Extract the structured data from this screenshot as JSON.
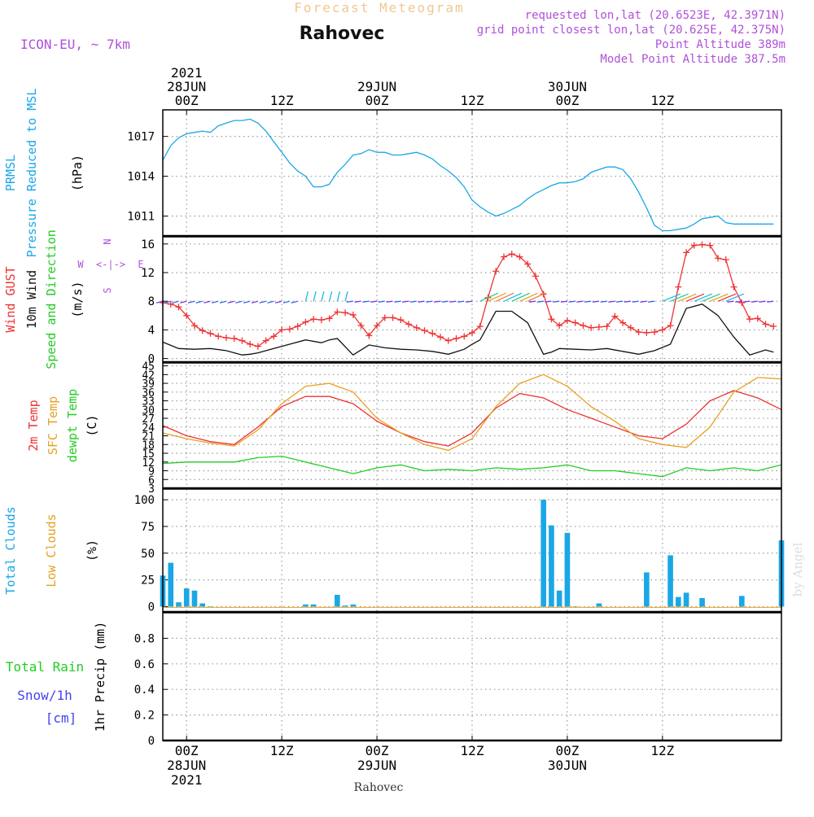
{
  "header": {
    "title": "Rahovec",
    "subtitle": "Forecast Meteogram",
    "model": "ICON-EU, ~ 7km",
    "requested": "requested lon,lat (20.6523E, 42.3971N)",
    "grid_point": "grid point closest lon,lat (20.625E, 42.375N)",
    "point_altitude": "Point Altitude 389m",
    "model_altitude": "Model Point Altitude 387.5m",
    "credit": "by Angel",
    "bottom_label": "Rahovec"
  },
  "colors": {
    "pressure": "#1aa7e6",
    "gust": "#ee3333",
    "wind": "#111111",
    "temp": "#ee3333",
    "sfc_temp": "#e8a020",
    "dewpt": "#22cc22",
    "clouds": "#1aa7e6",
    "low_clouds": "#e8a020",
    "rain": "#22cc22",
    "snow": "#4444ee",
    "purple": "#b050d8",
    "title_orange": "#f0c890"
  },
  "time_axis": {
    "hours_total": 78,
    "top_ticks": [
      {
        "hour": 3,
        "lines": [
          "2021",
          "28JUN",
          "00Z"
        ]
      },
      {
        "hour": 15,
        "lines": [
          "12Z"
        ]
      },
      {
        "hour": 27,
        "lines": [
          "29JUN",
          "00Z"
        ]
      },
      {
        "hour": 39,
        "lines": [
          "12Z"
        ]
      },
      {
        "hour": 51,
        "lines": [
          "30JUN",
          "00Z"
        ]
      },
      {
        "hour": 63,
        "lines": [
          "12Z"
        ]
      }
    ],
    "bottom_ticks": [
      {
        "hour": 3,
        "lines": [
          "00Z",
          "28JUN",
          "2021"
        ]
      },
      {
        "hour": 15,
        "lines": [
          "12Z"
        ]
      },
      {
        "hour": 27,
        "lines": [
          "00Z",
          "29JUN"
        ]
      },
      {
        "hour": 39,
        "lines": [
          "12Z"
        ]
      },
      {
        "hour": 51,
        "lines": [
          "00Z",
          "30JUN"
        ]
      },
      {
        "hour": 63,
        "lines": [
          "12Z"
        ]
      }
    ]
  },
  "chart_data": [
    {
      "type": "line",
      "title": "PRMSL Pressure Reduced to MSL",
      "label_lines": [
        "PRMSL",
        "Pressure Reduced to MSL"
      ],
      "ylabel": "(hPa)",
      "ylim": [
        1009.5,
        1019
      ],
      "yticks": [
        1011,
        1014,
        1017
      ],
      "series": [
        {
          "name": "PRMSL",
          "hours": [
            0,
            1,
            2,
            3,
            4,
            5,
            6,
            7,
            8,
            9,
            10,
            11,
            12,
            13,
            14,
            15,
            16,
            17,
            18,
            19,
            20,
            21,
            22,
            23,
            24,
            25,
            26,
            27,
            28,
            29,
            30,
            31,
            32,
            33,
            34,
            35,
            36,
            37,
            38,
            39,
            40,
            41,
            42,
            43,
            44,
            45,
            46,
            47,
            48,
            49,
            50,
            51,
            52,
            53,
            54,
            55,
            56,
            57,
            58,
            59,
            60,
            61,
            62,
            63,
            64,
            65,
            66,
            67,
            68,
            69,
            70,
            71,
            72,
            73,
            74,
            75,
            76,
            77
          ],
          "values": [
            1015.2,
            1016.3,
            1016.9,
            1017.2,
            1017.3,
            1017.4,
            1017.3,
            1017.8,
            1018.0,
            1018.2,
            1018.2,
            1018.3,
            1018.0,
            1017.4,
            1016.6,
            1015.8,
            1015.0,
            1014.4,
            1014.0,
            1013.2,
            1013.2,
            1013.4,
            1014.3,
            1014.9,
            1015.6,
            1015.7,
            1016.0,
            1015.8,
            1015.8,
            1015.6,
            1015.6,
            1015.7,
            1015.8,
            1015.6,
            1015.3,
            1014.8,
            1014.4,
            1013.9,
            1013.2,
            1012.2,
            1011.7,
            1011.3,
            1011.0,
            1011.2,
            1011.5,
            1011.8,
            1012.3,
            1012.7,
            1013.0,
            1013.3,
            1013.5,
            1013.5,
            1013.6,
            1013.8,
            1014.3,
            1014.5,
            1014.7,
            1014.7,
            1014.5,
            1013.8,
            1012.8,
            1011.6,
            1010.3,
            1009.9,
            1009.9,
            1010.0,
            1010.1,
            1010.4,
            1010.8,
            1010.9,
            1011.0,
            1010.5,
            1010.4,
            1010.4,
            1010.4,
            1010.4,
            1010.4,
            1010.4
          ]
        }
      ]
    },
    {
      "type": "line",
      "title": "Wind GUST / 10m Wind Speed and Direction",
      "label_lines": [
        "Wind GUST",
        "10m Wind",
        "Speed and Direction"
      ],
      "ylabel": "(m/s)",
      "ylim": [
        -0.5,
        17
      ],
      "yticks": [
        0,
        4,
        8,
        12,
        16
      ],
      "compass": {
        "n": "N",
        "s": "S",
        "e": "E",
        "w": "W",
        "mid": "<-|->"
      },
      "series": [
        {
          "name": "Wind GUST",
          "hours": [
            0,
            1,
            2,
            3,
            4,
            5,
            6,
            7,
            8,
            9,
            10,
            11,
            12,
            13,
            14,
            15,
            16,
            17,
            18,
            19,
            20,
            21,
            22,
            23,
            24,
            25,
            26,
            27,
            28,
            29,
            30,
            31,
            32,
            33,
            34,
            35,
            36,
            37,
            38,
            39,
            40,
            41,
            42,
            43,
            44,
            45,
            46,
            47,
            48,
            49,
            50,
            51,
            52,
            53,
            54,
            55,
            56,
            57,
            58,
            59,
            60,
            61,
            62,
            63,
            64,
            65,
            66,
            67,
            68,
            69,
            70,
            71,
            72,
            73,
            74,
            75,
            76,
            77
          ],
          "values": [
            7.8,
            7.6,
            7.2,
            6.0,
            4.6,
            3.9,
            3.5,
            3.1,
            2.9,
            2.8,
            2.5,
            2.0,
            1.7,
            2.5,
            3.1,
            4.0,
            4.1,
            4.5,
            5.1,
            5.5,
            5.4,
            5.6,
            6.5,
            6.4,
            6.1,
            4.6,
            3.2,
            4.6,
            5.7,
            5.7,
            5.4,
            4.8,
            4.3,
            3.9,
            3.5,
            3.0,
            2.5,
            2.8,
            3.1,
            3.6,
            4.5,
            8.5,
            12.2,
            14.2,
            14.6,
            14.2,
            13.2,
            11.5,
            9.0,
            5.5,
            4.6,
            5.3,
            5.0,
            4.6,
            4.3,
            4.4,
            4.5,
            5.9,
            5.0,
            4.3,
            3.7,
            3.6,
            3.7,
            4.0,
            4.6,
            10.0,
            14.8,
            15.8,
            15.9,
            15.8,
            14.0,
            13.8,
            10.0,
            7.8,
            5.5,
            5.6,
            4.8,
            4.5
          ]
        },
        {
          "name": "10m Wind",
          "hours": [
            0,
            2,
            4,
            6,
            8,
            10,
            11,
            12,
            14,
            16,
            18,
            20,
            21,
            22,
            24,
            26,
            28,
            30,
            32,
            34,
            36,
            38,
            39,
            40,
            42,
            44,
            46,
            48,
            49,
            50,
            52,
            54,
            56,
            58,
            60,
            62,
            64,
            65,
            66,
            68,
            70,
            72,
            74,
            76,
            77
          ],
          "values": [
            2.3,
            1.4,
            1.3,
            1.4,
            1.1,
            0.5,
            0.6,
            0.8,
            1.4,
            2.0,
            2.6,
            2.2,
            2.6,
            2.8,
            0.5,
            1.9,
            1.5,
            1.3,
            1.2,
            1.0,
            0.6,
            1.3,
            2.0,
            2.6,
            6.6,
            6.6,
            5.0,
            0.6,
            0.9,
            1.4,
            1.3,
            1.2,
            1.4,
            1.0,
            0.6,
            1.1,
            2.0,
            4.5,
            7.0,
            7.6,
            6.0,
            3.0,
            0.5,
            1.2,
            0.9
          ]
        }
      ]
    },
    {
      "type": "line",
      "title": "2m Temp / SFC Temp / dewpt Temp",
      "label_lines": [
        "2m Temp",
        "SFC Temp",
        "dewpt Temp"
      ],
      "ylabel": "(C)",
      "ylim": [
        3,
        46
      ],
      "yticks": [
        3,
        6,
        9,
        12,
        15,
        18,
        21,
        24,
        27,
        30,
        33,
        36,
        39,
        42,
        45
      ],
      "series": [
        {
          "name": "2m Temp",
          "hours": [
            0,
            3,
            6,
            9,
            12,
            15,
            18,
            21,
            24,
            27,
            30,
            33,
            36,
            39,
            42,
            45,
            48,
            51,
            54,
            57,
            60,
            63,
            66,
            69,
            72,
            75,
            78
          ],
          "values": [
            24.5,
            21,
            19,
            18,
            24,
            31,
            34.5,
            34.5,
            32,
            26,
            22,
            19,
            17.5,
            22,
            30.5,
            35.5,
            34,
            30,
            27,
            24,
            21,
            20,
            25,
            33,
            36.5,
            34,
            30
          ]
        },
        {
          "name": "SFC Temp",
          "hours": [
            0,
            3,
            6,
            9,
            12,
            15,
            18,
            21,
            24,
            27,
            30,
            33,
            36,
            39,
            42,
            45,
            48,
            51,
            54,
            57,
            60,
            63,
            66,
            69,
            72,
            75,
            78
          ],
          "values": [
            22,
            20,
            18.5,
            17.5,
            23,
            32,
            38,
            39,
            36,
            27,
            22,
            18,
            16,
            20,
            31,
            39,
            42,
            38,
            31,
            26,
            20,
            18,
            17,
            24,
            36,
            41,
            40.5
          ]
        },
        {
          "name": "dewpt Temp",
          "hours": [
            0,
            3,
            6,
            9,
            12,
            15,
            18,
            21,
            24,
            27,
            30,
            33,
            36,
            39,
            42,
            45,
            48,
            51,
            54,
            57,
            60,
            63,
            66,
            69,
            72,
            75,
            78
          ],
          "values": [
            11.5,
            12,
            12,
            12,
            13.5,
            14,
            12,
            10,
            8,
            10,
            11,
            9,
            9.5,
            9,
            10,
            9.5,
            10,
            11,
            9,
            9,
            8,
            7,
            10,
            9,
            10,
            9,
            11
          ]
        }
      ]
    },
    {
      "type": "bar",
      "title": "Total Clouds / Low Clouds",
      "label_lines": [
        "Total Clouds",
        "Low Clouds"
      ],
      "ylabel": "(%)",
      "ylim": [
        -5,
        110
      ],
      "yticks": [
        0,
        25,
        50,
        75,
        100
      ],
      "series": [
        {
          "name": "Total Clouds",
          "hours": [
            0,
            1,
            2,
            3,
            4,
            5,
            6,
            18,
            19,
            22,
            23,
            24,
            48,
            49,
            50,
            51,
            52,
            55,
            61,
            64,
            65,
            66,
            68,
            73,
            78
          ],
          "values": [
            29,
            41,
            4,
            17,
            15,
            3,
            0,
            2,
            2,
            11,
            1,
            2,
            100,
            76,
            15,
            69,
            0,
            3,
            32,
            48,
            9,
            13,
            8,
            10,
            62
          ]
        }
      ]
    },
    {
      "type": "line",
      "title": "Total Rain / Snow/1h / 1hr Precip",
      "label_lines": [
        "Total Rain",
        "Snow/1h",
        "[cm]"
      ],
      "ylabel": "1hr Precip (mm)",
      "ylim": [
        0,
        1
      ],
      "yticks": [
        0,
        0.2,
        0.4,
        0.6,
        0.8
      ],
      "series": [
        {
          "name": "Total Rain",
          "hours": [
            0,
            78
          ],
          "values": [
            0,
            0
          ]
        }
      ]
    }
  ]
}
